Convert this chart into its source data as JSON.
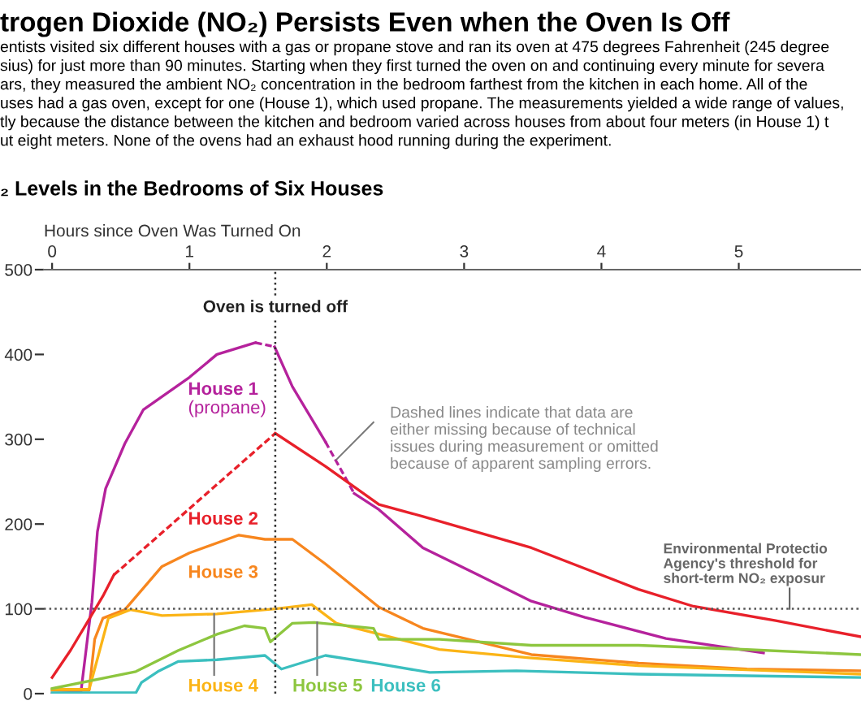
{
  "chart_data": {
    "type": "line",
    "title": "trogen Dioxide (NO₂) Persists Even when the Oven Is Off",
    "subtitle": "entists visited six different houses with a gas or propane stove and ran its oven at 475 degrees Fahrenheit (245 degree\nsius) for just more than 90 minutes. Starting when they first turned the oven on and continuing every minute for severa\nars, they measured the ambient NO₂ concentration in the bedroom farthest from the kitchen in each home. All of the\nuses had a gas oven, except for one (House 1), which used propane. The measurements yielded a wide range of values,\ntly because the distance between the kitchen and bedroom varied across houses from about four meters (in House 1) t\nut eight meters. None of the ovens had an exhaust hood running during the experiment.",
    "xlabel": "Hours since Oven Was Turned On",
    "annotations": [
      "₂ Levels in the Bedrooms of Six Houses",
      {
        "text": "Dashed lines indicate that data are\neither missing because of technical\nissues during measurement or omitted\nbecause of apparent sampling errors.",
        "x": 2.07,
        "y": 276
      }
    ],
    "series": [
      {
        "name": "House 1\n(propane)",
        "color": "#b5229c",
        "x": [
          0,
          0.21,
          0.29,
          0.33,
          0.39,
          0.53,
          0.665,
          1.0,
          1.2,
          1.48,
          1.55,
          1.62,
          1.75,
          1.99,
          2.1,
          2.2,
          2.38,
          2.7,
          3.09,
          3.49,
          3.88,
          4.47,
          5.18
        ],
        "values": [
          0,
          2,
          108,
          191,
          242,
          295,
          335,
          373,
          400,
          414,
          null,
          409,
          362,
          297,
          null,
          236,
          217,
          172,
          141,
          109,
          90,
          65,
          48
        ]
      },
      {
        "name": "House 2",
        "color": "#e8202a",
        "x": [
          0,
          0.134,
          0.252,
          0.37,
          0.45,
          1.0,
          1.625,
          1.99,
          2.38,
          2.7,
          3.49,
          4.27,
          4.67,
          5.27,
          5.89
        ],
        "values": [
          19,
          51,
          83,
          115,
          140,
          null,
          307,
          268,
          223,
          209,
          172,
          123,
          103,
          86,
          67
        ]
      },
      {
        "name": "House 3",
        "color": "#f7861e",
        "x": [
          0,
          0.27,
          0.31,
          0.37,
          0.53,
          0.8,
          1.0,
          1.36,
          1.55,
          1.75,
          1.99,
          2.38,
          2.7,
          3.49,
          4.27,
          5.06,
          5.89
        ],
        "values": [
          4,
          4,
          64,
          89,
          99,
          150,
          166,
          187,
          182,
          182,
          153,
          102,
          77,
          46,
          36,
          29,
          27
        ]
      },
      {
        "name": "House 4",
        "color": "#fbb416",
        "x": [
          0,
          0.27,
          0.41,
          0.57,
          0.8,
          1.2,
          1.625,
          1.89,
          2.07,
          2.82,
          3.49,
          4.27,
          5.89
        ],
        "values": [
          5,
          5,
          89,
          99,
          92,
          94,
          100,
          105,
          83,
          52,
          42,
          33,
          23
        ]
      },
      {
        "name": "House 5",
        "color": "#8dc63f",
        "x": [
          0,
          0.61,
          0.92,
          1.2,
          1.4,
          1.55,
          1.59,
          1.75,
          1.91,
          2.34,
          2.38,
          2.82,
          3.49,
          4.27,
          5.06,
          5.89
        ],
        "values": [
          6,
          26,
          51,
          70,
          80,
          77,
          61,
          83,
          84,
          77,
          64,
          64,
          57,
          57,
          52,
          46
        ]
      },
      {
        "name": "House 6",
        "color": "#3bbfbf",
        "x": [
          0,
          0.61,
          0.65,
          0.77,
          0.92,
          1.2,
          1.55,
          1.67,
          1.99,
          2.38,
          2.75,
          3.38,
          4.27,
          5.89
        ],
        "values": [
          1,
          1,
          13,
          26,
          38,
          40,
          45,
          29,
          45,
          35,
          25,
          27,
          23,
          19
        ]
      }
    ],
    "xlim": [
      -0.06,
      5.89
    ],
    "ylim": [
      0,
      500
    ],
    "xticks": [
      0,
      1,
      2,
      3,
      4,
      5
    ],
    "yticks": [
      0,
      100,
      200,
      300,
      400,
      500
    ],
    "ref_lines": [
      {
        "axis": "x",
        "value": 1.625,
        "label": "Oven is turned off",
        "line_style": "dotted",
        "color": "#333333"
      },
      {
        "axis": "y",
        "value": 100,
        "label": "Environmental Protectio\nAgency's threshold for\nshort-term NO₂ exposur",
        "line_style": "dotted",
        "color": "#555555"
      }
    ],
    "grid": false,
    "legend": false,
    "line_style": "solid",
    "marker": "none"
  }
}
